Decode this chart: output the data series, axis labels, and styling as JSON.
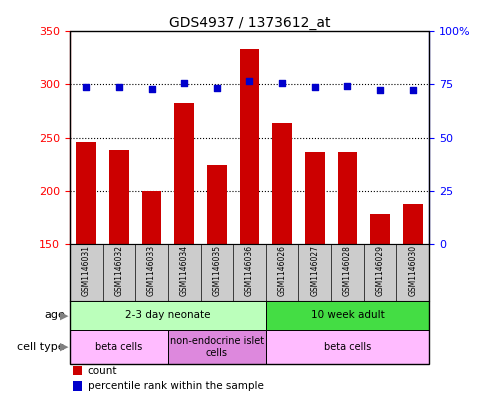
{
  "title": "GDS4937 / 1373612_at",
  "samples": [
    "GSM1146031",
    "GSM1146032",
    "GSM1146033",
    "GSM1146034",
    "GSM1146035",
    "GSM1146036",
    "GSM1146026",
    "GSM1146027",
    "GSM1146028",
    "GSM1146029",
    "GSM1146030"
  ],
  "counts": [
    246,
    238,
    200,
    283,
    224,
    333,
    264,
    236,
    236,
    178,
    187
  ],
  "percentiles": [
    74,
    74,
    73,
    75.5,
    73.5,
    76.5,
    75.5,
    74,
    74.5,
    72.5,
    72.5
  ],
  "ylim_left": [
    150,
    350
  ],
  "ylim_right": [
    0,
    100
  ],
  "yticks_left": [
    150,
    200,
    250,
    300,
    350
  ],
  "yticks_right": [
    0,
    25,
    50,
    75,
    100
  ],
  "hlines": [
    200,
    250,
    300
  ],
  "bar_color": "#cc0000",
  "dot_color": "#0000cc",
  "bar_width": 0.6,
  "age_groups": [
    {
      "label": "2-3 day neonate",
      "start": 0,
      "end": 6,
      "color": "#bbffbb"
    },
    {
      "label": "10 week adult",
      "start": 6,
      "end": 11,
      "color": "#44dd44"
    }
  ],
  "cell_type_groups": [
    {
      "label": "beta cells",
      "start": 0,
      "end": 3,
      "color": "#ffbbff"
    },
    {
      "label": "non-endocrine islet\ncells",
      "start": 3,
      "end": 6,
      "color": "#dd88dd"
    },
    {
      "label": "beta cells",
      "start": 6,
      "end": 11,
      "color": "#ffbbff"
    }
  ],
  "legend_count_label": "count",
  "legend_percentile_label": "percentile rank within the sample",
  "label_gray": "#cccccc",
  "plot_bg_color": "#ffffff"
}
